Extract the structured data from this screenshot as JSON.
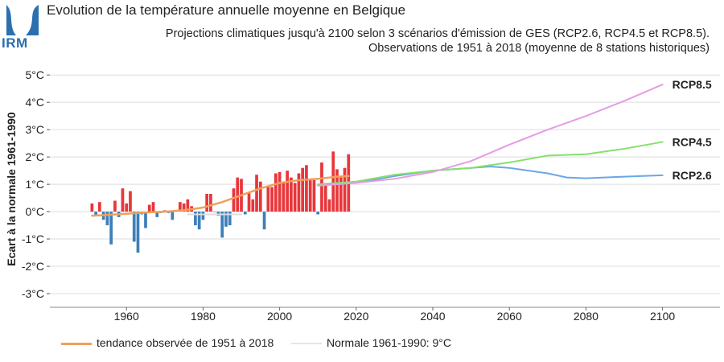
{
  "header": {
    "logo_text": "IRM",
    "title": "Evolution de la température annuelle moyenne en Belgique",
    "subtitle_line1": "Projections climatiques jusqu'à 2100 selon 3 scénarios d'émission de GES (RCP2.6, RCP4.5 et RCP8.5).",
    "subtitle_line2": "Observations de 1951 à 2018 (moyenne de 8 stations historiques)"
  },
  "colors": {
    "positive_bar": "#e8363a",
    "negative_bar": "#3d7fba",
    "trend": "#f0a05a",
    "normal": "#dddddd",
    "rcp26": "#6aa7e6",
    "rcp45": "#86e06c",
    "rcp85": "#e79ce2"
  },
  "chart_data": {
    "type": "bar+line",
    "ylabel": "Ecart à la normale 1961-1990",
    "xlim": [
      1940,
      2115
    ],
    "ylim": [
      -3.5,
      5.3
    ],
    "y_ticks": [
      {
        "value": 5,
        "label": "5°C"
      },
      {
        "value": 4,
        "label": "4°C"
      },
      {
        "value": 3,
        "label": "3°C"
      },
      {
        "value": 2,
        "label": "2°C"
      },
      {
        "value": 1,
        "label": "1°C"
      },
      {
        "value": 0,
        "label": "0°C"
      },
      {
        "value": -1,
        "label": "-1°C"
      },
      {
        "value": -2,
        "label": "-2°C"
      },
      {
        "value": -3,
        "label": "-3°C"
      }
    ],
    "x_ticks": [
      1960,
      1980,
      2000,
      2020,
      2040,
      2060,
      2080,
      2100
    ],
    "grid": true,
    "observations": {
      "years": [
        1951,
        1952,
        1953,
        1954,
        1955,
        1956,
        1957,
        1958,
        1959,
        1960,
        1961,
        1962,
        1963,
        1964,
        1965,
        1966,
        1967,
        1968,
        1969,
        1970,
        1971,
        1972,
        1973,
        1974,
        1975,
        1976,
        1977,
        1978,
        1979,
        1980,
        1981,
        1982,
        1983,
        1984,
        1985,
        1986,
        1987,
        1988,
        1989,
        1990,
        1991,
        1992,
        1993,
        1994,
        1995,
        1996,
        1997,
        1998,
        1999,
        2000,
        2001,
        2002,
        2003,
        2004,
        2005,
        2006,
        2007,
        2008,
        2009,
        2010,
        2011,
        2012,
        2013,
        2014,
        2015,
        2016,
        2017,
        2018
      ],
      "values": [
        0.3,
        -0.15,
        0.35,
        -0.3,
        -0.5,
        -1.2,
        0.4,
        -0.2,
        0.85,
        0.3,
        0.75,
        -1.1,
        -1.5,
        -0.1,
        -0.6,
        0.25,
        0.35,
        -0.2,
        -0.05,
        0.05,
        -0.05,
        -0.3,
        0.05,
        0.35,
        0.3,
        0.45,
        0.2,
        -0.5,
        -0.65,
        -0.3,
        0.65,
        0.65,
        0.0,
        -0.15,
        -0.95,
        -0.55,
        -0.5,
        0.85,
        1.25,
        1.2,
        -0.1,
        0.7,
        0.45,
        1.35,
        1.1,
        -0.65,
        0.95,
        0.9,
        1.4,
        1.45,
        1.1,
        1.5,
        1.25,
        1.05,
        1.4,
        1.6,
        1.7,
        1.15,
        1.15,
        -0.1,
        1.8,
        1.05,
        0.45,
        2.2,
        1.55,
        1.25,
        1.6,
        2.1
      ]
    },
    "series": [
      {
        "name": "tendance observée de 1951 à 2018",
        "x": [
          1951,
          1955,
          1960,
          1965,
          1970,
          1975,
          1980,
          1985,
          1990,
          1995,
          2000,
          2005,
          2010,
          2015,
          2018
        ],
        "y": [
          -0.15,
          -0.12,
          -0.08,
          -0.03,
          0.0,
          0.05,
          0.15,
          0.35,
          0.6,
          0.85,
          1.05,
          1.15,
          1.2,
          1.28,
          1.3
        ]
      },
      {
        "name": "Normale 1961-1990: 9°C",
        "x": [
          1976,
          1990
        ],
        "y": [
          -0.1,
          -0.1
        ]
      },
      {
        "name": "RCP2.6",
        "x": [
          2010,
          2020,
          2030,
          2040,
          2050,
          2055,
          2060,
          2070,
          2075,
          2080,
          2090,
          2100
        ],
        "y": [
          0.95,
          1.05,
          1.3,
          1.5,
          1.6,
          1.65,
          1.6,
          1.4,
          1.25,
          1.22,
          1.28,
          1.33
        ]
      },
      {
        "name": "RCP4.5",
        "x": [
          2010,
          2020,
          2030,
          2040,
          2050,
          2060,
          2070,
          2080,
          2090,
          2100
        ],
        "y": [
          1.0,
          1.1,
          1.35,
          1.5,
          1.6,
          1.8,
          2.05,
          2.1,
          2.3,
          2.55
        ]
      },
      {
        "name": "RCP8.5",
        "x": [
          2010,
          2020,
          2030,
          2040,
          2050,
          2060,
          2070,
          2080,
          2090,
          2100
        ],
        "y": [
          0.95,
          1.05,
          1.2,
          1.45,
          1.85,
          2.45,
          3.0,
          3.5,
          4.05,
          4.65
        ]
      }
    ]
  }
}
